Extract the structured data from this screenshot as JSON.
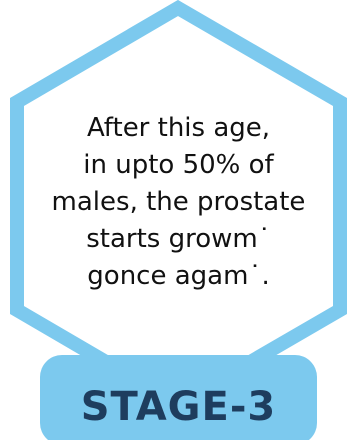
{
  "card": {
    "lines": [
      "After this age,",
      "in upto 50% of",
      "males, the prostate",
      "starts growm˙",
      "gonce agam˙."
    ],
    "stage_label": "STAGE-3"
  },
  "colors": {
    "hex_border": "#7cc9ee",
    "hex_fill": "#ffffff",
    "tab_fill": "#7cc9ee",
    "tab_text": "#1e3d5e",
    "body_text": "#111111"
  }
}
